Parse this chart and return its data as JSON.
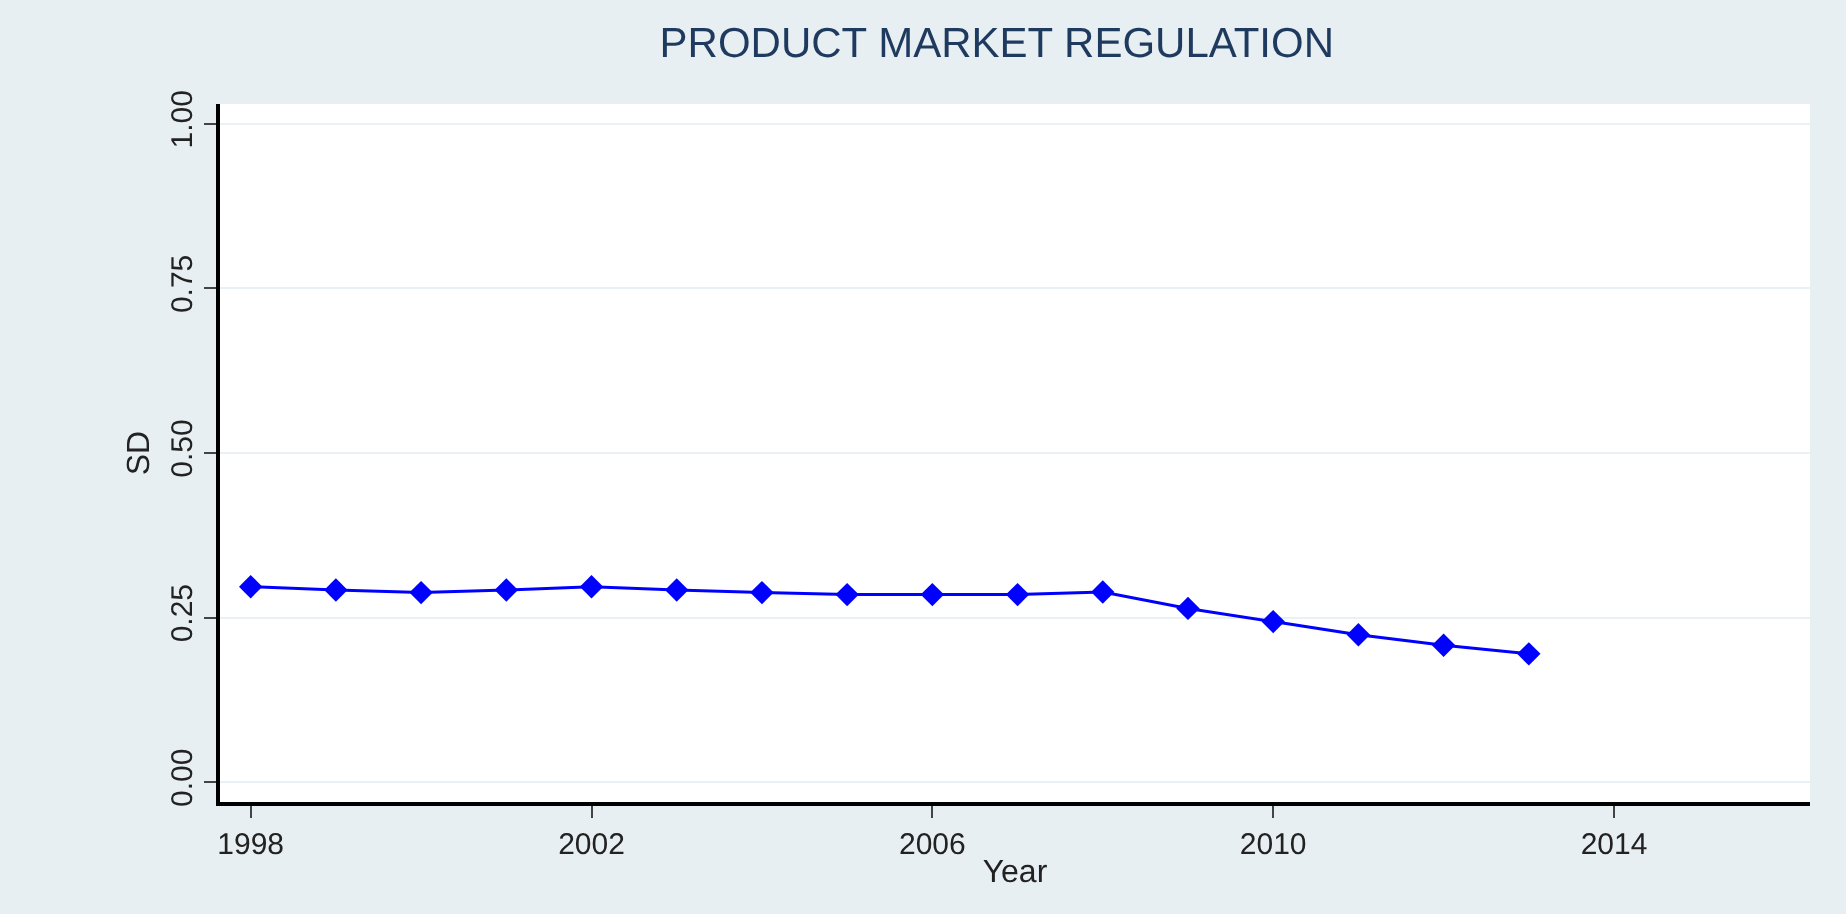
{
  "chart_data": {
    "type": "line",
    "title": "PRODUCT MARKET REGULATION",
    "xlabel": "Year",
    "ylabel": "SD",
    "x": [
      1998,
      1999,
      2000,
      2001,
      2002,
      2003,
      2004,
      2005,
      2006,
      2007,
      2008,
      2009,
      2010,
      2011,
      2012,
      2013
    ],
    "series": [
      {
        "color": "#0000ff",
        "values": [
          0.297,
          0.292,
          0.288,
          0.292,
          0.297,
          0.292,
          0.288,
          0.285,
          0.285,
          0.285,
          0.289,
          0.264,
          0.244,
          0.224,
          0.208,
          0.195
        ]
      }
    ],
    "xlim": [
      1997.64,
      2016.3
    ],
    "xticks": [
      1998,
      2002,
      2006,
      2010,
      2014
    ],
    "ylim": [
      -0.03,
      1.03
    ],
    "yticks": [
      {
        "value": 0,
        "label": "0.00"
      },
      {
        "value": 0.25,
        "label": "0.25"
      },
      {
        "value": 0.5,
        "label": "0.50"
      },
      {
        "value": 0.75,
        "label": "0.75"
      },
      {
        "value": 1,
        "label": "1.00"
      }
    ],
    "grid": "y",
    "marker": "diamond",
    "line_style": "solid",
    "legend": false
  }
}
